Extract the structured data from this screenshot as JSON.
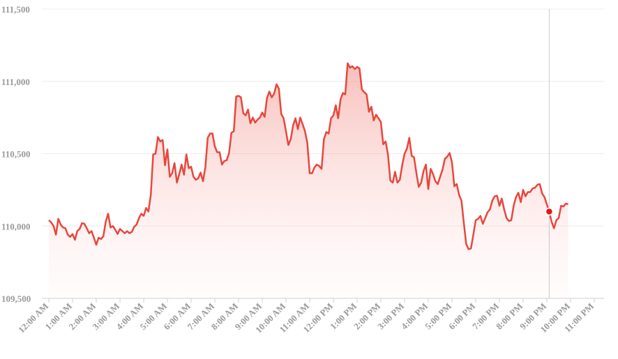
{
  "chart_data": {
    "type": "line",
    "color": "#e8463c",
    "grid": true,
    "xlim": [
      0,
      1380
    ],
    "xticks": [
      {
        "value": 0,
        "label": "12:00 AM"
      },
      {
        "value": 60,
        "label": "1:00 AM"
      },
      {
        "value": 120,
        "label": "2:00 AM"
      },
      {
        "value": 180,
        "label": "3:00 AM"
      },
      {
        "value": 240,
        "label": "4:00 AM"
      },
      {
        "value": 300,
        "label": "5:00 AM"
      },
      {
        "value": 360,
        "label": "6:00 AM"
      },
      {
        "value": 420,
        "label": "7:00 AM"
      },
      {
        "value": 480,
        "label": "8:00 AM"
      },
      {
        "value": 540,
        "label": "9:00 AM"
      },
      {
        "value": 600,
        "label": "10:00 AM"
      },
      {
        "value": 660,
        "label": "11:00 AM"
      },
      {
        "value": 720,
        "label": "12:00 PM"
      },
      {
        "value": 780,
        "label": "1:00 PM"
      },
      {
        "value": 840,
        "label": "2:00 PM"
      },
      {
        "value": 900,
        "label": "3:00 PM"
      },
      {
        "value": 960,
        "label": "4:00 PM"
      },
      {
        "value": 1020,
        "label": "5:00 PM"
      },
      {
        "value": 1080,
        "label": "6:00 PM"
      },
      {
        "value": 1140,
        "label": "7:00 PM"
      },
      {
        "value": 1200,
        "label": "8:00 PM"
      },
      {
        "value": 1260,
        "label": "9:00 PM"
      },
      {
        "value": 1320,
        "label": "10:00 PM"
      },
      {
        "value": 1380,
        "label": "11:00 PM"
      }
    ],
    "ylim": [
      109500,
      111500
    ],
    "yticks": [
      {
        "value": 109500,
        "label": "109,500"
      },
      {
        "value": 110000,
        "label": "110,000"
      },
      {
        "value": 110500,
        "label": "110,500"
      },
      {
        "value": 111000,
        "label": "111,000"
      },
      {
        "value": 111500,
        "label": "111,500"
      }
    ],
    "x": [
      0,
      6,
      12,
      18,
      24,
      30,
      36,
      42,
      48,
      54,
      60,
      66,
      72,
      78,
      84,
      90,
      96,
      102,
      108,
      114,
      120,
      126,
      132,
      138,
      144,
      150,
      156,
      162,
      168,
      174,
      180,
      186,
      192,
      198,
      204,
      210,
      216,
      222,
      228,
      234,
      240,
      246,
      252,
      258,
      264,
      270,
      276,
      282,
      288,
      294,
      300,
      306,
      312,
      318,
      324,
      330,
      336,
      342,
      348,
      354,
      360,
      366,
      372,
      378,
      384,
      390,
      396,
      402,
      408,
      414,
      420,
      426,
      432,
      438,
      444,
      450,
      456,
      462,
      468,
      474,
      480,
      486,
      492,
      498,
      504,
      510,
      516,
      522,
      528,
      534,
      540,
      546,
      552,
      558,
      564,
      570,
      576,
      582,
      588,
      594,
      600,
      606,
      612,
      618,
      624,
      630,
      636,
      642,
      648,
      654,
      660,
      666,
      672,
      678,
      684,
      690,
      696,
      702,
      708,
      714,
      720,
      726,
      732,
      738,
      744,
      750,
      756,
      762,
      768,
      774,
      780,
      786,
      792,
      798,
      804,
      810,
      816,
      822,
      828,
      834,
      840,
      846,
      852,
      858,
      864,
      870,
      876,
      882,
      888,
      894,
      900,
      906,
      912,
      918,
      924,
      930,
      936,
      942,
      948,
      954,
      960,
      966,
      972,
      978,
      984,
      990,
      996,
      1002,
      1008,
      1014,
      1020,
      1026,
      1032,
      1038,
      1044,
      1050,
      1056,
      1062,
      1068,
      1074,
      1080,
      1086,
      1092,
      1098,
      1104,
      1110,
      1116,
      1122,
      1128,
      1134,
      1140,
      1146,
      1152,
      1158,
      1164,
      1170,
      1176,
      1182,
      1188,
      1194,
      1200,
      1206,
      1212,
      1218,
      1224,
      1230,
      1236,
      1242,
      1248,
      1254,
      1260,
      1266,
      1272,
      1278,
      1284,
      1290,
      1296,
      1302,
      1308,
      1314
    ],
    "values": [
      110040,
      110025,
      110000,
      109940,
      110050,
      110010,
      109990,
      109985,
      109940,
      109925,
      109945,
      109905,
      109965,
      109980,
      110020,
      110015,
      109985,
      109950,
      109965,
      109920,
      109870,
      109920,
      109910,
      109930,
      110030,
      110085,
      109990,
      110000,
      109975,
      109945,
      109980,
      109965,
      109950,
      109965,
      109950,
      109960,
      109995,
      110010,
      110055,
      110085,
      110070,
      110125,
      110100,
      110215,
      110495,
      110500,
      110615,
      110585,
      110595,
      110420,
      110530,
      110340,
      110365,
      110435,
      110300,
      110360,
      110425,
      110355,
      110495,
      110400,
      110410,
      110340,
      110320,
      110330,
      110370,
      110310,
      110405,
      110610,
      110640,
      110640,
      110550,
      110510,
      110510,
      110425,
      110450,
      110455,
      110505,
      110645,
      110655,
      110895,
      110900,
      110890,
      110780,
      110765,
      110805,
      110710,
      110750,
      110715,
      110735,
      110750,
      110785,
      110755,
      110885,
      110930,
      110890,
      110915,
      110980,
      110950,
      110775,
      110745,
      110655,
      110560,
      110600,
      110695,
      110745,
      110670,
      110750,
      110705,
      110655,
      110575,
      110365,
      110365,
      110405,
      110425,
      110415,
      110395,
      110600,
      110650,
      110640,
      110745,
      110765,
      110835,
      110745,
      110875,
      110920,
      110910,
      111125,
      111095,
      111105,
      111085,
      111100,
      111090,
      110945,
      110925,
      110910,
      110790,
      110825,
      110730,
      110770,
      110745,
      110720,
      110565,
      110585,
      110495,
      110315,
      110300,
      110375,
      110300,
      110320,
      110420,
      110500,
      110535,
      110610,
      110485,
      110475,
      110365,
      110270,
      110300,
      110380,
      110425,
      110255,
      110395,
      110360,
      110310,
      110290,
      110340,
      110390,
      110465,
      110480,
      110505,
      110440,
      110275,
      110290,
      110215,
      110175,
      110020,
      109875,
      109840,
      109845,
      109940,
      110040,
      110050,
      110070,
      110015,
      110055,
      110095,
      110115,
      110175,
      110205,
      110210,
      110140,
      110190,
      110115,
      110055,
      110035,
      110040,
      110140,
      110200,
      110230,
      110165,
      110250,
      110205,
      110235,
      110235,
      110260,
      110265,
      110285,
      110290,
      110225,
      110200,
      110150,
      110100,
      110030,
      109985,
      110040,
      110055,
      110140,
      110135,
      110155,
      110150
    ]
  }
}
